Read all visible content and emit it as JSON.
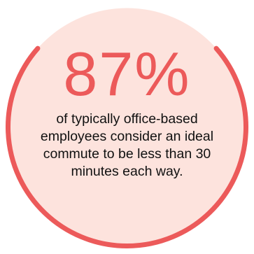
{
  "statistic": {
    "value": "87%",
    "caption": "of typically office-based employees consider an ideal commute to be less than 30 minutes each way."
  },
  "colors": {
    "accent": "#ec5a5a",
    "circle_fill": "#fde3dd",
    "text": "#111111",
    "background": "#ffffff"
  }
}
